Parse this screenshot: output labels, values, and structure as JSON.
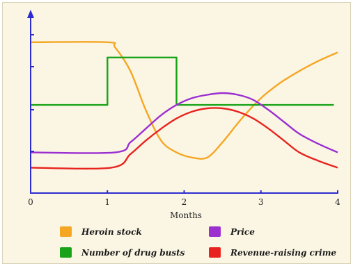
{
  "chart_data": {
    "type": "line",
    "title": "",
    "xlabel": "Months",
    "ylabel": "",
    "xlim": [
      0,
      4
    ],
    "xticks": [
      "0",
      "1",
      "2",
      "3",
      "4"
    ],
    "grid": false,
    "legend_position": "bottom",
    "colors": {
      "axis": "#2b2bd1",
      "background": "#fbf6e4",
      "heroin_stock": "#f5a623",
      "drug_busts": "#19a319",
      "price": "#9b2fd0",
      "crime": "#e8231f"
    },
    "series": [
      {
        "name": "Heroin stock",
        "color": "#f5a623",
        "x": [
          0,
          1.0,
          1.1,
          1.3,
          1.5,
          1.7,
          1.9,
          2.1,
          2.3,
          2.5,
          2.75,
          3.0,
          3.25,
          3.5,
          3.75,
          4.0
        ],
        "y": [
          0.89,
          0.89,
          0.86,
          0.72,
          0.49,
          0.31,
          0.24,
          0.21,
          0.21,
          0.3,
          0.44,
          0.56,
          0.65,
          0.72,
          0.78,
          0.83
        ]
      },
      {
        "name": "Number of drug busts",
        "color": "#19a319",
        "step": true,
        "x": [
          0,
          1.0,
          1.0,
          1.9,
          1.9,
          3.95
        ],
        "y": [
          0.52,
          0.52,
          0.8,
          0.8,
          0.52,
          0.52
        ]
      },
      {
        "name": "Price",
        "color": "#9b2fd0",
        "x": [
          0,
          1.1,
          1.3,
          1.5,
          1.7,
          1.9,
          2.1,
          2.3,
          2.5,
          2.7,
          2.9,
          3.1,
          3.3,
          3.5,
          3.75,
          4.0
        ],
        "y": [
          0.24,
          0.24,
          0.3,
          0.38,
          0.46,
          0.52,
          0.56,
          0.58,
          0.59,
          0.58,
          0.55,
          0.49,
          0.42,
          0.35,
          0.29,
          0.24
        ]
      },
      {
        "name": "Revenue-raising crime",
        "color": "#e8231f",
        "x": [
          0,
          1.05,
          1.3,
          1.5,
          1.7,
          1.9,
          2.1,
          2.3,
          2.5,
          2.7,
          2.9,
          3.1,
          3.3,
          3.5,
          3.75,
          4.0
        ],
        "y": [
          0.15,
          0.15,
          0.23,
          0.31,
          0.38,
          0.44,
          0.48,
          0.5,
          0.5,
          0.48,
          0.44,
          0.38,
          0.31,
          0.24,
          0.19,
          0.15
        ]
      }
    ]
  },
  "legend": {
    "items": [
      {
        "label": "Heroin stock",
        "color": "#f5a623"
      },
      {
        "label": "Price",
        "color": "#9b2fd0"
      },
      {
        "label": "Number of drug busts",
        "color": "#19a319"
      },
      {
        "label": "Revenue-raising crime",
        "color": "#e8231f"
      }
    ]
  }
}
